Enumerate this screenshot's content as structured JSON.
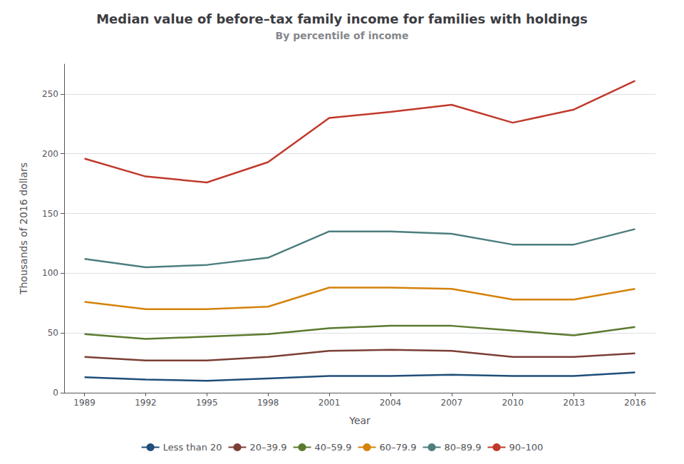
{
  "chart_data": {
    "type": "line",
    "title": "Median value of before–tax family income for families with holdings",
    "subtitle": "By percentile of income",
    "xlabel": "Year",
    "ylabel": "Thousands of 2016 dollars",
    "x": [
      1989,
      1992,
      1995,
      1998,
      2001,
      2004,
      2007,
      2010,
      2013,
      2016
    ],
    "series": [
      {
        "name": "Less than 20",
        "color": "#1f4e79",
        "values": [
          13,
          11,
          10,
          12,
          14,
          14,
          15,
          14,
          14,
          17
        ]
      },
      {
        "name": "20–39.9",
        "color": "#7b3f35",
        "values": [
          30,
          27,
          27,
          30,
          35,
          36,
          35,
          30,
          30,
          33
        ]
      },
      {
        "name": "40–59.9",
        "color": "#5a7a2e",
        "values": [
          49,
          45,
          47,
          49,
          54,
          56,
          56,
          52,
          48,
          55
        ]
      },
      {
        "name": "60–79.9",
        "color": "#d4820a",
        "values": [
          76,
          70,
          70,
          72,
          88,
          88,
          87,
          78,
          78,
          87
        ]
      },
      {
        "name": "80–89.9",
        "color": "#4d7e7e",
        "values": [
          112,
          105,
          107,
          113,
          135,
          135,
          133,
          124,
          124,
          137
        ]
      },
      {
        "name": "90–100",
        "color": "#c0392b",
        "values": [
          196,
          181,
          176,
          193,
          230,
          235,
          241,
          226,
          237,
          261
        ]
      }
    ],
    "xlim": [
      1988,
      2017
    ],
    "xticks": [
      1989,
      1992,
      1995,
      1998,
      2001,
      2004,
      2007,
      2010,
      2013,
      2016
    ],
    "ylim": [
      0,
      275
    ],
    "yticks": [
      0,
      50,
      100,
      150,
      200,
      250
    ],
    "grid": "y",
    "legend": "bottom"
  }
}
